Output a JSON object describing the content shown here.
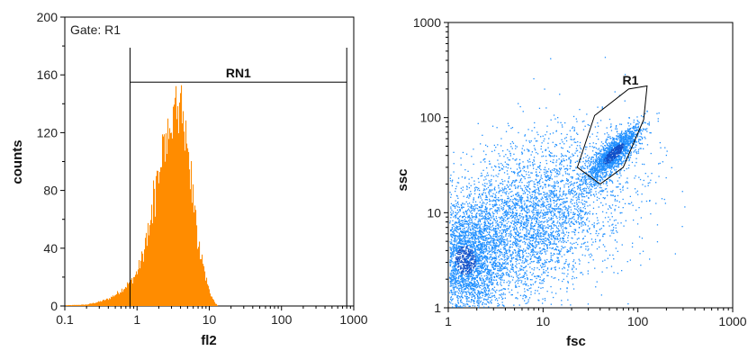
{
  "colors": {
    "histogram_fill": "#ff8c00",
    "scatter_dot": "#1f8fff",
    "scatter_dense": "#1250c8",
    "axis": "#000000"
  },
  "chart_data": [
    {
      "type": "histogram",
      "title": "",
      "gate_label": "Gate: R1",
      "xlabel": "fl2",
      "ylabel": "counts",
      "x_scale": "log",
      "xlim": [
        0.1,
        1000
      ],
      "ylim": [
        0,
        200
      ],
      "x_ticks": [
        "0.1",
        "1",
        "10",
        "100",
        "1000"
      ],
      "y_ticks": [
        "0",
        "40",
        "80",
        "120",
        "160",
        "200"
      ],
      "marker": {
        "label": "RN1",
        "x_start": 0.8,
        "x_end": 800,
        "y": 155
      },
      "distribution": {
        "description_peak_x": 3.6,
        "peak_count": 138,
        "points": [
          [
            0.2,
            1
          ],
          [
            0.3,
            3
          ],
          [
            0.4,
            5
          ],
          [
            0.5,
            8
          ],
          [
            0.6,
            11
          ],
          [
            0.7,
            14
          ],
          [
            0.8,
            17
          ],
          [
            0.9,
            20
          ],
          [
            1.0,
            24
          ],
          [
            1.2,
            36
          ],
          [
            1.4,
            52
          ],
          [
            1.6,
            70
          ],
          [
            1.8,
            86
          ],
          [
            2.0,
            100
          ],
          [
            2.3,
            112
          ],
          [
            2.6,
            122
          ],
          [
            3.0,
            128
          ],
          [
            3.5,
            133
          ],
          [
            4.0,
            130
          ],
          [
            4.5,
            118
          ],
          [
            5.0,
            100
          ],
          [
            5.6,
            82
          ],
          [
            6.3,
            62
          ],
          [
            7.0,
            45
          ],
          [
            8.0,
            30
          ],
          [
            9.0,
            18
          ],
          [
            10,
            10
          ],
          [
            11,
            5
          ],
          [
            12,
            2
          ],
          [
            13,
            0
          ]
        ]
      }
    },
    {
      "type": "scatter",
      "title": "",
      "xlabel": "fsc",
      "ylabel": "ssc",
      "x_scale": "log",
      "y_scale": "log",
      "xlim": [
        1,
        1000
      ],
      "ylim": [
        1,
        1000
      ],
      "x_ticks": [
        "1",
        "10",
        "100",
        "1000"
      ],
      "y_ticks": [
        "1",
        "10",
        "100",
        "1000"
      ],
      "gate": {
        "label": "R1",
        "polygon": [
          [
            35,
            105
          ],
          [
            80,
            200
          ],
          [
            125,
            215
          ],
          [
            115,
            95
          ],
          [
            70,
            30
          ],
          [
            40,
            20
          ],
          [
            23,
            30
          ]
        ]
      },
      "clusters": [
        {
          "center": [
            55,
            42
          ],
          "spread_log": [
            0.14,
            0.15
          ],
          "count": 1600
        },
        {
          "center": [
            1.5,
            3.2
          ],
          "spread_log": [
            0.22,
            0.3
          ],
          "count": 3000
        },
        {
          "center": [
            6,
            7
          ],
          "spread_log": [
            0.35,
            0.35
          ],
          "count": 2400
        },
        {
          "center": [
            20,
            20
          ],
          "spread_log": [
            0.4,
            0.35
          ],
          "count": 1200
        }
      ]
    }
  ]
}
